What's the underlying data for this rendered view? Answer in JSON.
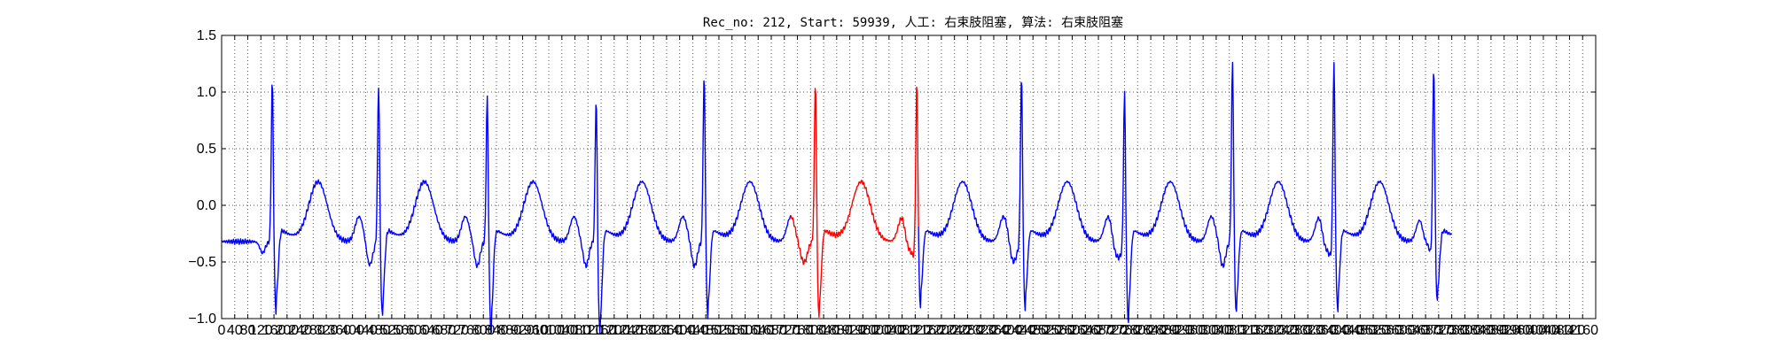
{
  "chart_data": {
    "type": "line",
    "title": "Rec_no: 212, Start: 59939, 人工: 右束肢阻塞, 算法: 右束肢阻塞",
    "xlabel": "",
    "ylabel": "",
    "xlim": [
      0,
      4200
    ],
    "ylim": [
      -1.0,
      1.5
    ],
    "grid": true,
    "y_ticks": [
      -1.0,
      -0.5,
      0.0,
      0.5,
      1.0,
      1.5
    ],
    "y_tick_labels": [
      "−1.0",
      "−0.5",
      "0.0",
      "0.5",
      "1.0",
      "1.5"
    ],
    "x_ticks": [
      0,
      40,
      80,
      120,
      160,
      200,
      240,
      280,
      320,
      360,
      400,
      440,
      480,
      520,
      560,
      600,
      640,
      680,
      720,
      760,
      800,
      840,
      880,
      920,
      960,
      1000,
      1040,
      1080,
      1120,
      1160,
      1200,
      1240,
      1280,
      1320,
      1360,
      1400,
      1440,
      1480,
      1520,
      1560,
      1600,
      1640,
      1680,
      1720,
      1760,
      1800,
      1840,
      1880,
      1920,
      1960,
      2000,
      2040,
      2080,
      2120,
      2160,
      2200,
      2240,
      2280,
      2320,
      2360,
      2400,
      2440,
      2480,
      2520,
      2560,
      2600,
      2640,
      2680,
      2720,
      2760,
      2800,
      2840,
      2880,
      2920,
      2960,
      3000,
      3040,
      3080,
      3120,
      3160,
      3200,
      3240,
      3280,
      3320,
      3360,
      3400,
      3440,
      3480,
      3520,
      3560,
      3600,
      3640,
      3680,
      3720,
      3760,
      3800,
      3840,
      3880,
      3920,
      3960,
      4000,
      4040,
      4080,
      4120,
      4160
    ],
    "x_tick_labels": [
      "0",
      "40",
      "80",
      "120",
      "160",
      "200",
      "240",
      "280",
      "320",
      "360",
      "400",
      "440",
      "480",
      "520",
      "560",
      "600",
      "640",
      "680",
      "720",
      "760",
      "800",
      "840",
      "880",
      "920",
      "960",
      "1000",
      "1040",
      "1080",
      "1120",
      "1160",
      "1200",
      "1240",
      "1280",
      "1320",
      "1360",
      "1400",
      "1440",
      "1480",
      "1520",
      "1560",
      "1600",
      "1640",
      "1680",
      "1720",
      "1760",
      "1800",
      "1840",
      "1880",
      "1920",
      "1960",
      "2000",
      "2040",
      "2080",
      "2120",
      "2160",
      "2200",
      "2240",
      "2280",
      "2320",
      "2360",
      "2400",
      "2440",
      "2480",
      "2520",
      "2560",
      "2600",
      "2640",
      "2680",
      "2720",
      "2760",
      "2800",
      "2840",
      "2880",
      "2920",
      "2960",
      "3000",
      "3040",
      "3080",
      "3120",
      "3160",
      "3200",
      "3240",
      "3280",
      "3320",
      "3360",
      "3400",
      "3440",
      "3480",
      "3520",
      "3560",
      "3600",
      "3640",
      "3680",
      "3720",
      "3760",
      "3800",
      "3840",
      "3880",
      "3920",
      "3960",
      "4000",
      "4040",
      "4080",
      "4120",
      "4160"
    ],
    "beats": [
      {
        "t": 155,
        "amp": 1.05,
        "s": -0.75
      },
      {
        "t": 480,
        "amp": 1.02,
        "s": -0.78
      },
      {
        "t": 812,
        "amp": 0.92,
        "s": -0.92
      },
      {
        "t": 1145,
        "amp": 0.92,
        "s": -0.95
      },
      {
        "t": 1475,
        "amp": 1.1,
        "s": -0.8
      },
      {
        "t": 1815,
        "amp": 1.05,
        "s": -0.8
      },
      {
        "t": 2125,
        "amp": 1.1,
        "s": -0.7
      },
      {
        "t": 2445,
        "amp": 1.1,
        "s": -0.73
      },
      {
        "t": 2760,
        "amp": 0.98,
        "s": -0.83
      },
      {
        "t": 3090,
        "amp": 1.22,
        "s": -0.75
      },
      {
        "t": 3400,
        "amp": 1.28,
        "s": -0.72
      },
      {
        "t": 3705,
        "amp": 1.28,
        "s": -0.65
      }
    ],
    "series": [
      {
        "color": "#0000ff",
        "x": [],
        "y": []
      },
      {
        "color": "#ff0000",
        "x": [],
        "y": []
      },
      {
        "color": "#0000ff",
        "x": [],
        "y": []
      }
    ],
    "highlight_range": [
      1740,
      2130
    ],
    "data_end": 3760
  },
  "colors": {
    "normal": "#0000ff",
    "highlight": "#ff0000",
    "grid": "#555555",
    "axis": "#000000"
  }
}
